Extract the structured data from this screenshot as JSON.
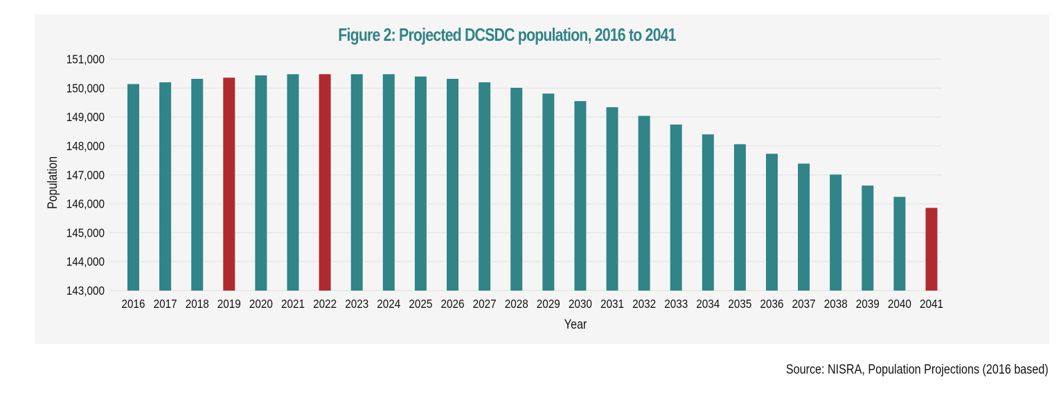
{
  "chart_data": {
    "type": "bar",
    "title": "Figure 2: Projected DCSDC population, 2016 to 2041",
    "xlabel": "Year",
    "ylabel": "Population",
    "ylim": [
      143000,
      151000
    ],
    "yticks": [
      143000,
      144000,
      145000,
      146000,
      147000,
      148000,
      149000,
      150000,
      151000
    ],
    "ytick_labels": [
      "143,000",
      "144,000",
      "145,000",
      "146,000",
      "147,000",
      "148,000",
      "149,000",
      "150,000",
      "151,000"
    ],
    "grid": true,
    "legend": "none",
    "categories": [
      "2016",
      "2017",
      "2018",
      "2019",
      "2020",
      "2021",
      "2022",
      "2023",
      "2024",
      "2025",
      "2026",
      "2027",
      "2028",
      "2029",
      "2030",
      "2031",
      "2032",
      "2033",
      "2034",
      "2035",
      "2036",
      "2037",
      "2038",
      "2039",
      "2040",
      "2041"
    ],
    "values": [
      150140,
      150200,
      150320,
      150360,
      150440,
      150480,
      150480,
      150480,
      150480,
      150400,
      150320,
      150200,
      150010,
      149810,
      149550,
      149340,
      149040,
      148740,
      148400,
      148060,
      147730,
      147390,
      147010,
      146630,
      146240,
      145860
    ],
    "highlighted": [
      "2019",
      "2022",
      "2041"
    ],
    "colors": {
      "default": "#318487",
      "highlight": "#b02a30",
      "title": "#318487",
      "grid": "#e6e6e6"
    }
  },
  "source": "Source: NISRA, Population Projections (2016 based)"
}
